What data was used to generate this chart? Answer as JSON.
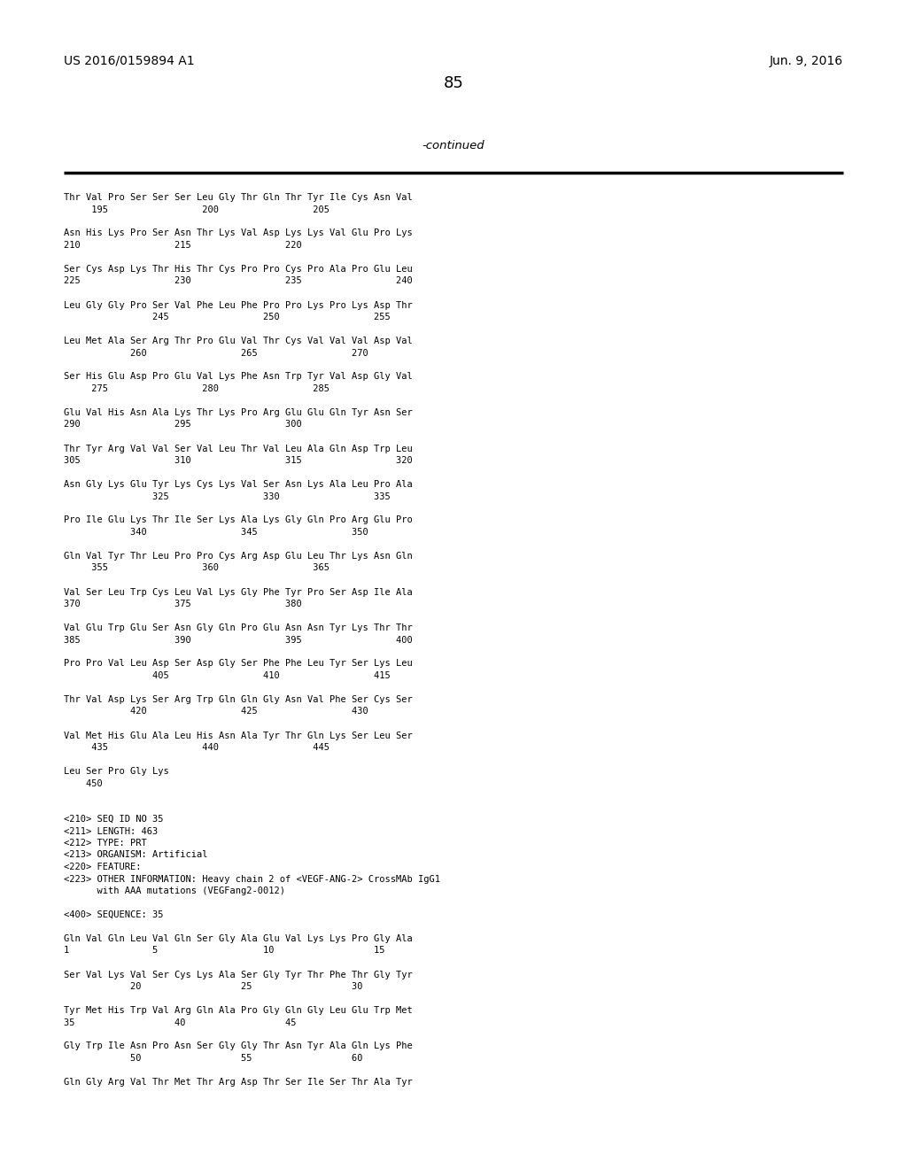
{
  "bg_color": "#ffffff",
  "text_color": "#000000",
  "header_left": "US 2016/0159894 A1",
  "header_right": "Jun. 9, 2016",
  "page_number": "85",
  "continued_label": "-continued",
  "content_lines": [
    "Thr Val Pro Ser Ser Ser Leu Gly Thr Gln Thr Tyr Ile Cys Asn Val",
    "     195                 200                 205",
    "",
    "Asn His Lys Pro Ser Asn Thr Lys Val Asp Lys Lys Val Glu Pro Lys",
    "210                 215                 220",
    "",
    "Ser Cys Asp Lys Thr His Thr Cys Pro Pro Cys Pro Ala Pro Glu Leu",
    "225                 230                 235                 240",
    "",
    "Leu Gly Gly Pro Ser Val Phe Leu Phe Pro Pro Lys Pro Lys Asp Thr",
    "                245                 250                 255",
    "",
    "Leu Met Ala Ser Arg Thr Pro Glu Val Thr Cys Val Val Val Asp Val",
    "            260                 265                 270",
    "",
    "Ser His Glu Asp Pro Glu Val Lys Phe Asn Trp Tyr Val Asp Gly Val",
    "     275                 280                 285",
    "",
    "Glu Val His Asn Ala Lys Thr Lys Pro Arg Glu Glu Gln Tyr Asn Ser",
    "290                 295                 300",
    "",
    "Thr Tyr Arg Val Val Ser Val Leu Thr Val Leu Ala Gln Asp Trp Leu",
    "305                 310                 315                 320",
    "",
    "Asn Gly Lys Glu Tyr Lys Cys Lys Val Ser Asn Lys Ala Leu Pro Ala",
    "                325                 330                 335",
    "",
    "Pro Ile Glu Lys Thr Ile Ser Lys Ala Lys Gly Gln Pro Arg Glu Pro",
    "            340                 345                 350",
    "",
    "Gln Val Tyr Thr Leu Pro Pro Cys Arg Asp Glu Leu Thr Lys Asn Gln",
    "     355                 360                 365",
    "",
    "Val Ser Leu Trp Cys Leu Val Lys Gly Phe Tyr Pro Ser Asp Ile Ala",
    "370                 375                 380",
    "",
    "Val Glu Trp Glu Ser Asn Gly Gln Pro Glu Asn Asn Tyr Lys Thr Thr",
    "385                 390                 395                 400",
    "",
    "Pro Pro Val Leu Asp Ser Asp Gly Ser Phe Phe Leu Tyr Ser Lys Leu",
    "                405                 410                 415",
    "",
    "Thr Val Asp Lys Ser Arg Trp Gln Gln Gly Asn Val Phe Ser Cys Ser",
    "            420                 425                 430",
    "",
    "Val Met His Glu Ala Leu His Asn Ala Tyr Thr Gln Lys Ser Leu Ser",
    "     435                 440                 445",
    "",
    "Leu Ser Pro Gly Lys",
    "    450",
    "",
    "",
    "<210> SEQ ID NO 35",
    "<211> LENGTH: 463",
    "<212> TYPE: PRT",
    "<213> ORGANISM: Artificial",
    "<220> FEATURE:",
    "<223> OTHER INFORMATION: Heavy chain 2 of <VEGF-ANG-2> CrossMAb IgG1",
    "      with AAA mutations (VEGFang2-0012)",
    "",
    "<400> SEQUENCE: 35",
    "",
    "Gln Val Gln Leu Val Gln Ser Gly Ala Glu Val Lys Lys Pro Gly Ala",
    "1               5                   10                  15",
    "",
    "Ser Val Lys Val Ser Cys Lys Ala Ser Gly Tyr Thr Phe Thr Gly Tyr",
    "            20                  25                  30",
    "",
    "Tyr Met His Trp Val Arg Gln Ala Pro Gly Gln Gly Leu Glu Trp Met",
    "35                  40                  45",
    "",
    "Gly Trp Ile Asn Pro Asn Ser Gly Gly Thr Asn Tyr Ala Gln Lys Phe",
    "            50                  55                  60",
    "",
    "Gln Gly Arg Val Thr Met Thr Arg Asp Thr Ser Ile Ser Thr Ala Tyr"
  ]
}
